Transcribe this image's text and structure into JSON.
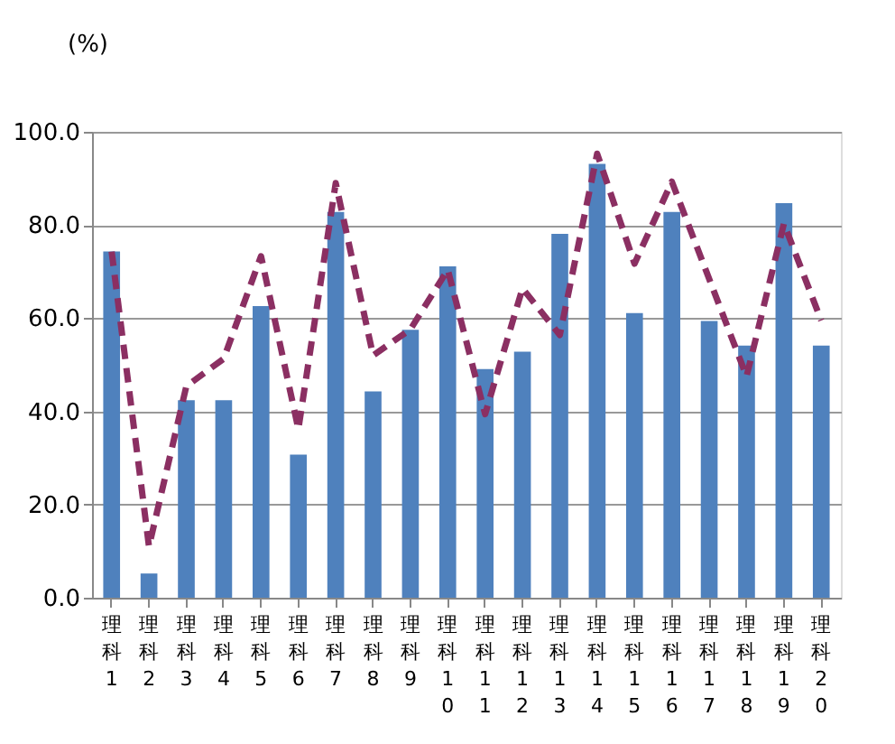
{
  "chart_data": {
    "type": "bar",
    "ylabel": "(%)",
    "categories": [
      "理科1",
      "理科2",
      "理科3",
      "理科4",
      "理科5",
      "理科6",
      "理科7",
      "理科8",
      "理科9",
      "理科10",
      "理科11",
      "理科12",
      "理科13",
      "理科14",
      "理科15",
      "理科16",
      "理科17",
      "理科18",
      "理科19",
      "理科20"
    ],
    "series": [
      {
        "color": "#4f81bd",
        "values": [
          74.3,
          5.2,
          42.4,
          42.4,
          62.6,
          30.7,
          82.8,
          44.3,
          57.5,
          71.1,
          49.1,
          52.8,
          78.1,
          93.1,
          61.1,
          82.8,
          59.4,
          54.1,
          84.7,
          54.1
        ]
      },
      {
        "type": "line",
        "color": "#8b2f62",
        "line_style": "dashed",
        "values": [
          74.3,
          11,
          45.4,
          51.3,
          73.3,
          36.2,
          89,
          52,
          57.6,
          70.4,
          39.4,
          66.4,
          56.4,
          95.3,
          71.7,
          89.3,
          68.4,
          47.5,
          80.3,
          59.5
        ]
      }
    ],
    "ylim": [
      0,
      100
    ],
    "yticks": [
      {
        "value": 0,
        "label": "0.0"
      },
      {
        "value": 20,
        "label": "20.0"
      },
      {
        "value": 40,
        "label": "40.0"
      },
      {
        "value": 60,
        "label": "60.0"
      },
      {
        "value": 80,
        "label": "80.0"
      },
      {
        "value": 100,
        "label": "100.0"
      }
    ],
    "grid": "y",
    "legend": false
  }
}
